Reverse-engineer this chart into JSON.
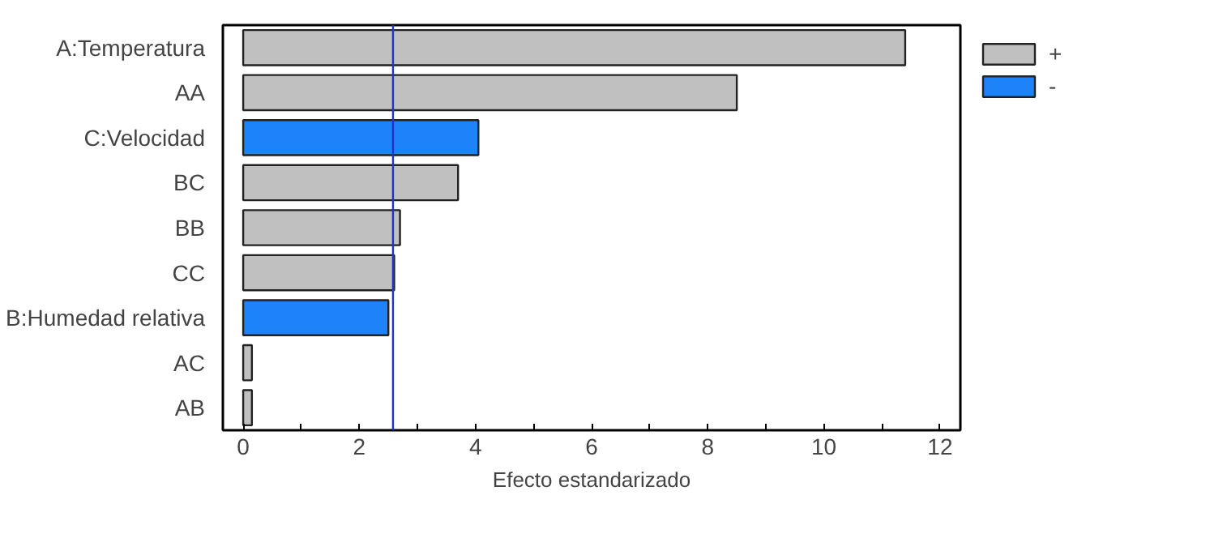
{
  "chart_data": {
    "type": "bar",
    "orientation": "horizontal",
    "xlabel": "Efecto estandarizado",
    "categories": [
      "A:Temperatura",
      "AA",
      "C:Velocidad",
      "BC",
      "BB",
      "CC",
      "B:Humedad relativa",
      "AC",
      "AB"
    ],
    "series": [
      {
        "name": "+",
        "color": "#c0c0c0",
        "values": [
          11.4,
          8.5,
          null,
          3.7,
          2.7,
          2.6,
          null,
          0.15,
          0.15
        ]
      },
      {
        "name": "-",
        "color": "#1e82f8",
        "values": [
          null,
          null,
          4.05,
          null,
          null,
          null,
          2.5,
          null,
          null
        ]
      }
    ],
    "xlim": [
      -0.35,
      12.35
    ],
    "xticks": [
      0,
      {
        "value": 1,
        "label": null
      },
      2,
      {
        "value": 3,
        "label": null
      },
      4,
      {
        "value": 5,
        "label": null
      },
      6,
      {
        "value": 7,
        "label": null
      },
      8,
      {
        "value": 9,
        "label": null
      },
      10,
      {
        "value": 11,
        "label": null
      },
      12
    ],
    "ref_lines": [
      {
        "axis": "x",
        "value": 2.58,
        "color": "#2233cc"
      }
    ],
    "legend": "top right",
    "grid": false
  }
}
